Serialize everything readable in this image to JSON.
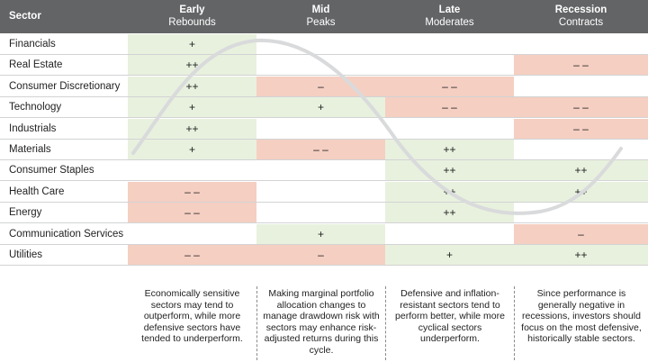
{
  "chart_data": {
    "type": "table",
    "header": {
      "sector": "Sector"
    },
    "phases": [
      {
        "title": "Early",
        "subtitle": "Rebounds"
      },
      {
        "title": "Mid",
        "subtitle": "Peaks"
      },
      {
        "title": "Late",
        "subtitle": "Moderates"
      },
      {
        "title": "Recession",
        "subtitle": "Contracts"
      }
    ],
    "rows": [
      {
        "sector": "Financials",
        "cells": [
          "+",
          "",
          "",
          ""
        ]
      },
      {
        "sector": "Real Estate",
        "cells": [
          "++",
          "",
          "",
          "– –"
        ]
      },
      {
        "sector": "Consumer Discretionary",
        "cells": [
          "++",
          "–",
          "– –",
          ""
        ]
      },
      {
        "sector": "Technology",
        "cells": [
          "+",
          "+",
          "– –",
          "– –"
        ]
      },
      {
        "sector": "Industrials",
        "cells": [
          "++",
          "",
          "",
          "– –"
        ]
      },
      {
        "sector": "Materials",
        "cells": [
          "+",
          "– –",
          "++",
          ""
        ]
      },
      {
        "sector": "Consumer Staples",
        "cells": [
          "",
          "",
          "++",
          "++"
        ]
      },
      {
        "sector": "Health Care",
        "cells": [
          "– –",
          "",
          "++",
          "++"
        ]
      },
      {
        "sector": "Energy",
        "cells": [
          "– –",
          "",
          "++",
          ""
        ]
      },
      {
        "sector": "Communication Services",
        "cells": [
          "",
          "+",
          "",
          "–"
        ]
      },
      {
        "sector": "Utilities",
        "cells": [
          "– –",
          "–",
          "+",
          "++"
        ]
      }
    ],
    "notes": [
      "Economically sensitive sectors may tend to outperform, while more defensive sectors have tended to underperform.",
      "Making marginal portfolio allocation changes to manage drawdown risk with sectors may enhance risk-adjusted returns during this cycle.",
      "Defensive and inflation-resistant sectors tend to perform better, while more cyclical sectors underperform.",
      "Since performance is generally negative in recessions, investors should focus on the most defensive, historically stable sectors."
    ],
    "colors": {
      "header": "#636466",
      "positive": "#e8f1de",
      "negative": "#f5cfc2",
      "cycle_line": "#d9dadb"
    }
  }
}
